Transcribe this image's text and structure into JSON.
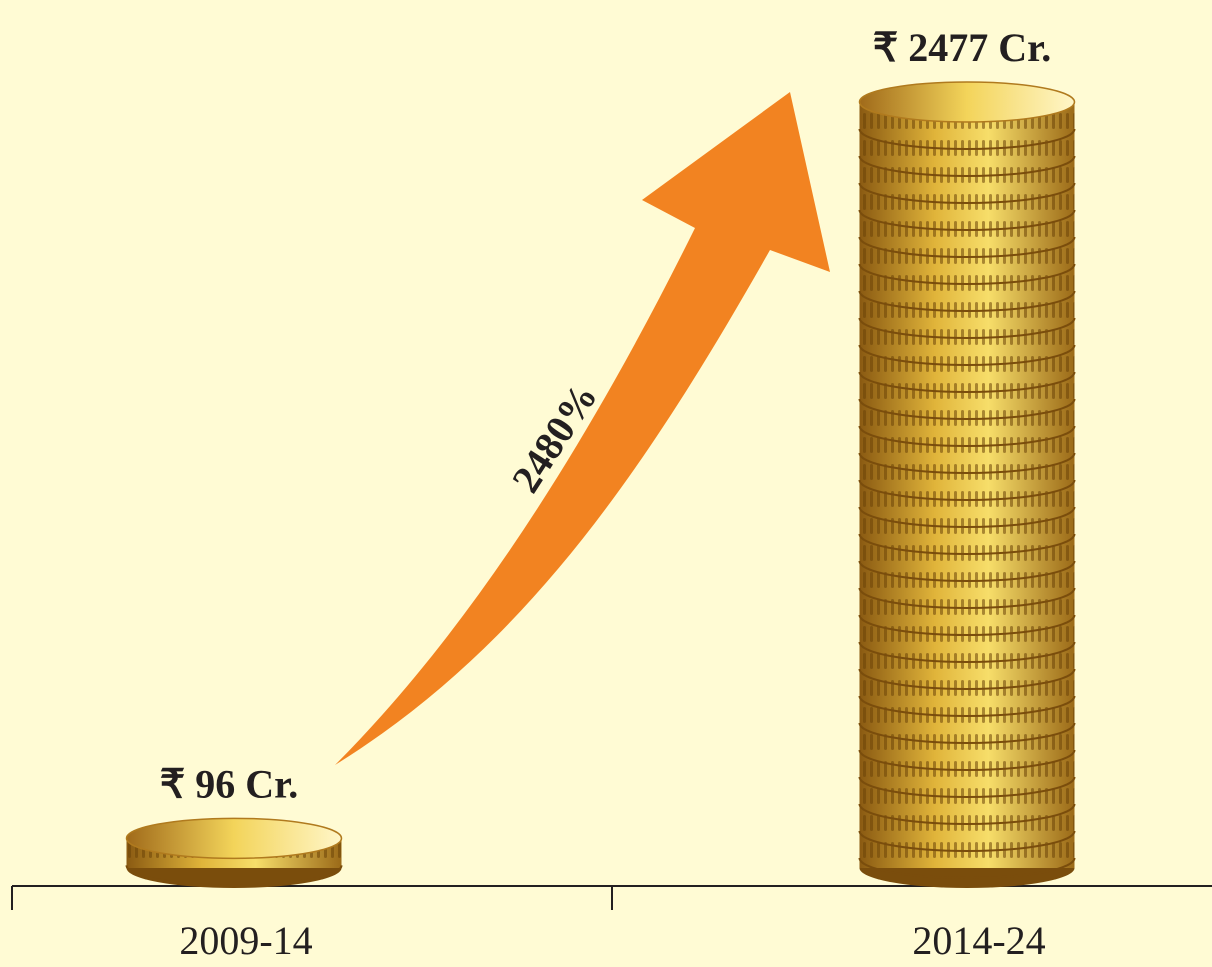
{
  "chart_data": {
    "type": "bar",
    "categories": [
      "2009-14",
      "2014-24"
    ],
    "values": [
      96,
      2477
    ],
    "value_labels": [
      "₹ 96 Cr.",
      "₹ 2477 Cr."
    ],
    "annotation": "2480%"
  }
}
